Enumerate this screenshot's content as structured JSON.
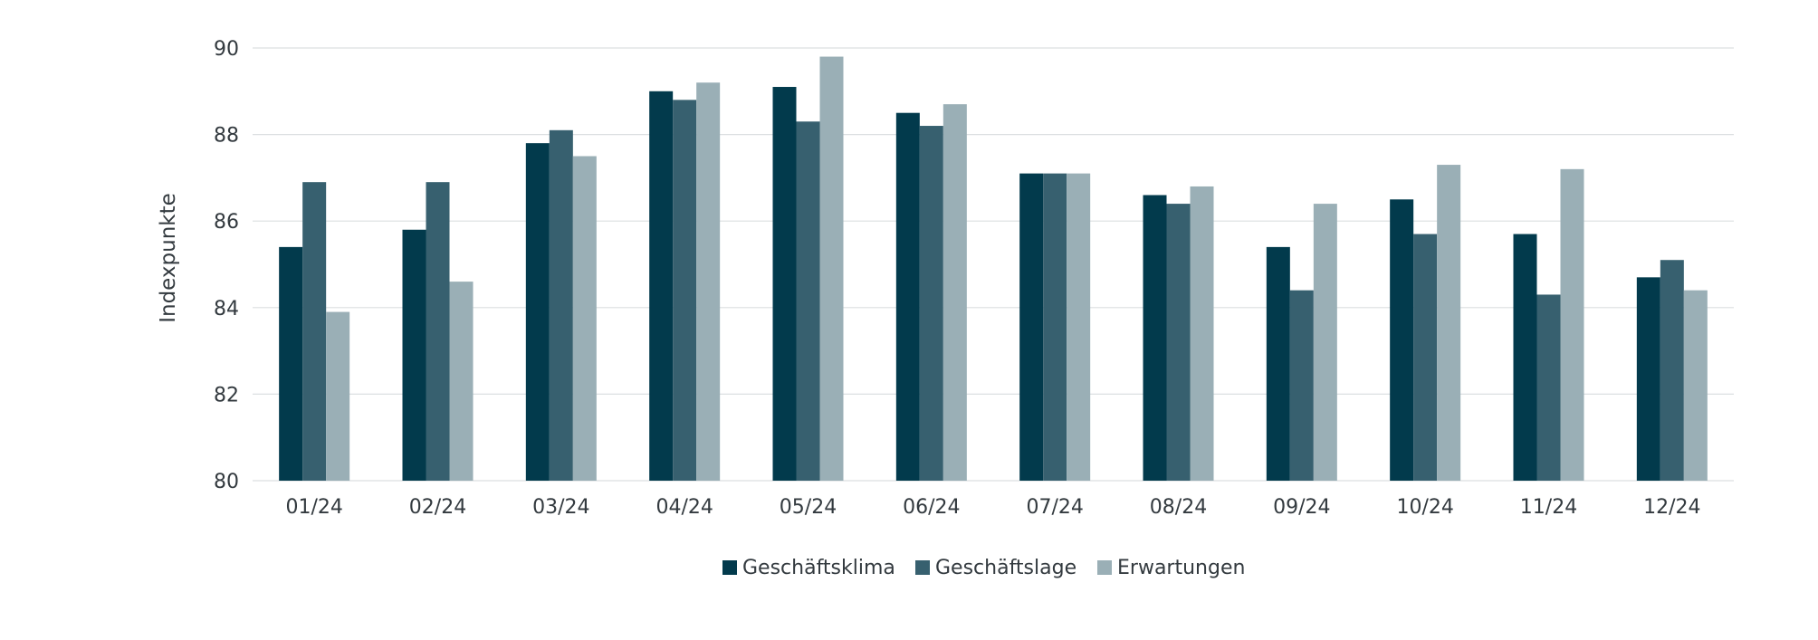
{
  "chart_data": {
    "type": "bar",
    "categories": [
      "01/24",
      "02/24",
      "03/24",
      "04/24",
      "05/24",
      "06/24",
      "07/24",
      "08/24",
      "09/24",
      "10/24",
      "11/24",
      "12/24"
    ],
    "series": [
      {
        "name": "Geschäftsklima",
        "color": "#023a4c",
        "values": [
          85.4,
          85.8,
          87.8,
          89.0,
          89.1,
          88.5,
          87.1,
          86.6,
          85.4,
          86.5,
          85.7,
          84.7
        ]
      },
      {
        "name": "Geschäftslage",
        "color": "#37606f",
        "values": [
          86.9,
          86.9,
          88.1,
          88.8,
          88.3,
          88.2,
          87.1,
          86.4,
          84.4,
          85.7,
          84.3,
          85.1
        ]
      },
      {
        "name": "Erwartungen",
        "color": "#9aafb6",
        "values": [
          83.9,
          84.6,
          87.5,
          89.2,
          89.8,
          88.7,
          87.1,
          86.8,
          86.4,
          87.3,
          87.2,
          84.4
        ]
      }
    ],
    "ylabel": "Indexpunkte",
    "xlabel": "",
    "title": "",
    "ylim": [
      80,
      90
    ],
    "yticks": [
      80,
      82,
      84,
      86,
      88,
      90
    ],
    "grid": true,
    "legend_position": "bottom-center"
  }
}
